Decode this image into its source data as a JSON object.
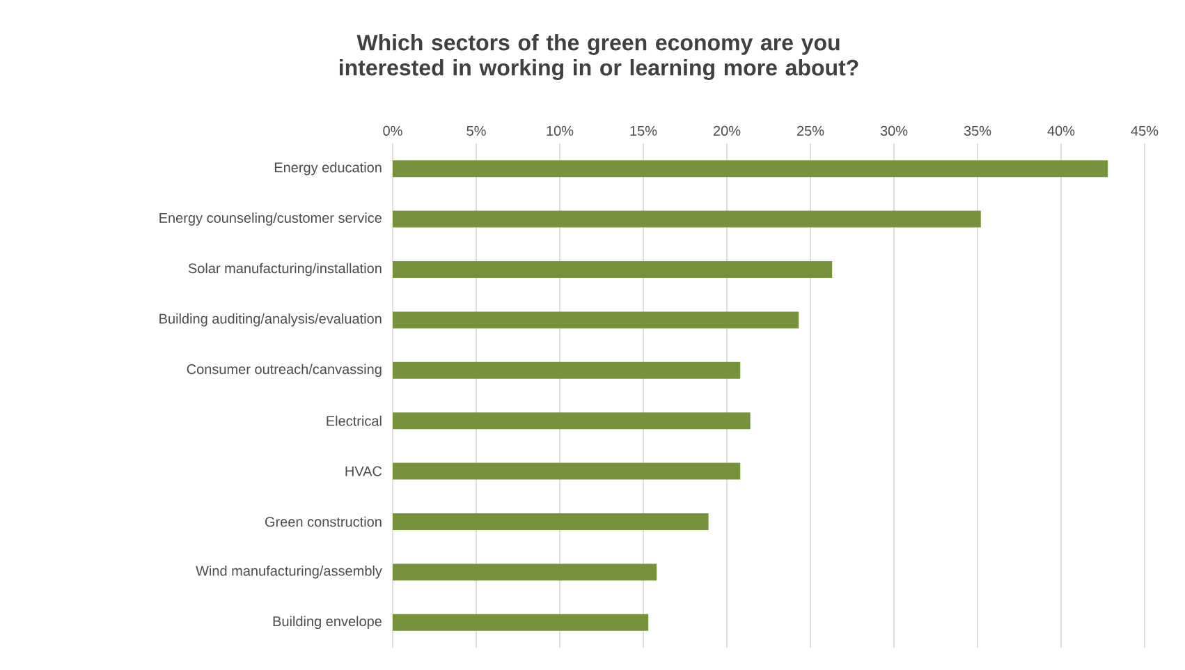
{
  "chart_data": {
    "type": "bar",
    "orientation": "horizontal",
    "title": "Which sectors of the green economy are you interested in working in or learning more about?",
    "categories": [
      "Energy education",
      "Energy counseling/customer service",
      "Solar manufacturing/installation",
      "Building auditing/analysis/evaluation",
      "Consumer outreach/canvassing",
      "Electrical",
      "HVAC",
      "Green construction",
      "Wind manufacturing/assembly",
      "Building envelope"
    ],
    "values": [
      42.8,
      35.2,
      26.3,
      24.3,
      20.8,
      21.4,
      20.8,
      18.9,
      15.8,
      15.3
    ],
    "color": "#76923c",
    "xlim": [
      0,
      45
    ],
    "xticks": [
      {
        "value": 0,
        "label": "0%"
      },
      {
        "value": 5,
        "label": "5%"
      },
      {
        "value": 10,
        "label": "10%"
      },
      {
        "value": 15,
        "label": "15%"
      },
      {
        "value": 20,
        "label": "20%"
      },
      {
        "value": 25,
        "label": "25%"
      },
      {
        "value": 30,
        "label": "30%"
      },
      {
        "value": 35,
        "label": "35%"
      },
      {
        "value": 40,
        "label": "40%"
      },
      {
        "value": 45,
        "label": "45%"
      }
    ],
    "grid": "x"
  }
}
